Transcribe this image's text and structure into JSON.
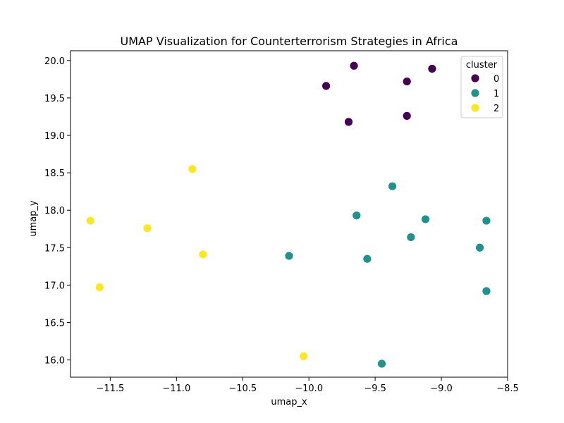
{
  "chart_data": {
    "type": "scatter",
    "title": "UMAP Visualization for Counterterrorism Strategies in Africa",
    "xlabel": "umap_x",
    "ylabel": "umap_y",
    "xlim": [
      -11.8,
      -8.5
    ],
    "ylim": [
      15.77,
      20.13
    ],
    "xticks": [
      "−11.5",
      "−11.0",
      "−10.5",
      "−10.0",
      "−9.5",
      "−9.0",
      "−8.5"
    ],
    "xtick_values": [
      -11.5,
      -11.0,
      -10.5,
      -10.0,
      -9.5,
      -9.0,
      -8.5
    ],
    "yticks": [
      "16.0",
      "16.5",
      "17.0",
      "17.5",
      "18.0",
      "18.5",
      "19.0",
      "19.5",
      "20.0"
    ],
    "ytick_values": [
      16.0,
      16.5,
      17.0,
      17.5,
      18.0,
      18.5,
      19.0,
      19.5,
      20.0
    ],
    "grid": false,
    "legend": {
      "title": "cluster",
      "placement": "top-right"
    },
    "series": [
      {
        "name": "0",
        "color": "#440154",
        "points": [
          {
            "x": -9.66,
            "y": 19.93
          },
          {
            "x": -9.07,
            "y": 19.89
          },
          {
            "x": -9.26,
            "y": 19.72
          },
          {
            "x": -9.87,
            "y": 19.66
          },
          {
            "x": -9.26,
            "y": 19.26
          },
          {
            "x": -9.7,
            "y": 19.18
          }
        ]
      },
      {
        "name": "1",
        "color": "#21918c",
        "points": [
          {
            "x": -9.37,
            "y": 18.32
          },
          {
            "x": -9.64,
            "y": 17.93
          },
          {
            "x": -9.12,
            "y": 17.88
          },
          {
            "x": -8.66,
            "y": 17.86
          },
          {
            "x": -9.23,
            "y": 17.64
          },
          {
            "x": -8.71,
            "y": 17.5
          },
          {
            "x": -10.15,
            "y": 17.39
          },
          {
            "x": -9.56,
            "y": 17.35
          },
          {
            "x": -8.66,
            "y": 16.92
          },
          {
            "x": -9.45,
            "y": 15.95
          }
        ]
      },
      {
        "name": "2",
        "color": "#fde725",
        "points": [
          {
            "x": -10.88,
            "y": 18.55
          },
          {
            "x": -11.65,
            "y": 17.86
          },
          {
            "x": -11.22,
            "y": 17.76
          },
          {
            "x": -10.8,
            "y": 17.41
          },
          {
            "x": -11.58,
            "y": 16.97
          },
          {
            "x": -10.04,
            "y": 16.05
          }
        ]
      }
    ]
  }
}
